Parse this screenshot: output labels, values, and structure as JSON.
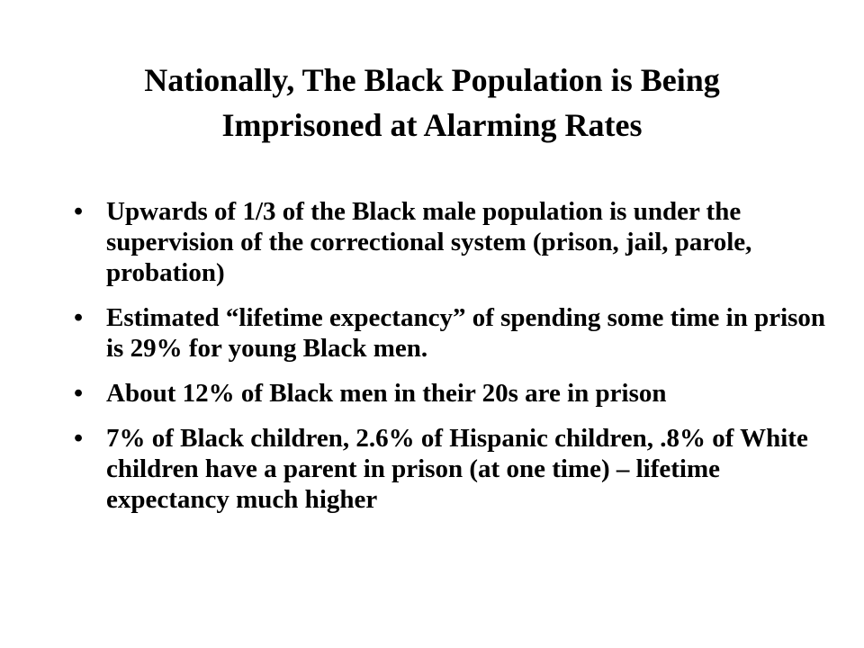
{
  "slide": {
    "title_line1": "Nationally, The Black Population is Being",
    "title_line2": "Imprisoned at Alarming Rates",
    "bullets": [
      "Upwards of 1/3 of the Black male population is under the supervision of the correctional system (prison, jail, parole, probation)",
      "Estimated “lifetime expectancy” of spending some time in prison is 29% for young Black men.",
      "About 12% of Black men in their 20s are in prison",
      "7% of Black children, 2.6% of Hispanic children, .8% of White children have a parent in prison (at one time) – lifetime expectancy much higher"
    ],
    "bullet_symbol": "•"
  }
}
